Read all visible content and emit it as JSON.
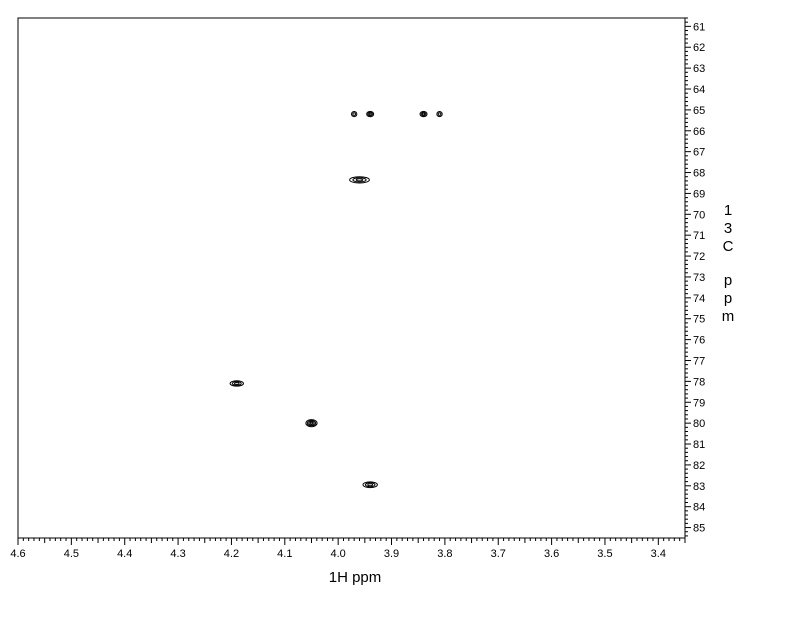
{
  "chart_data": {
    "type": "scatter",
    "subtype": "2D NMR contour plot",
    "title": "",
    "xlabel": "1H ppm",
    "ylabel": "13C ppm",
    "xlim": [
      4.6,
      3.35
    ],
    "ylim": [
      60.6,
      85.5
    ],
    "x_reversed": true,
    "y_reversed": true,
    "x_tick_labels": [
      "4.6",
      "4.5",
      "4.4",
      "4.3",
      "4.2",
      "4.1",
      "4.0",
      "3.9",
      "3.8",
      "3.7",
      "3.6",
      "3.5",
      "3.4"
    ],
    "x_tick_values": [
      4.6,
      4.5,
      4.4,
      4.3,
      4.2,
      4.1,
      4.0,
      3.9,
      3.8,
      3.7,
      3.6,
      3.5,
      3.4
    ],
    "y_tick_labels": [
      "61",
      "62",
      "63",
      "64",
      "65",
      "66",
      "67",
      "68",
      "69",
      "70",
      "71",
      "72",
      "73",
      "74",
      "75",
      "76",
      "77",
      "78",
      "79",
      "80",
      "81",
      "82",
      "83",
      "84",
      "85"
    ],
    "y_tick_values": [
      61,
      62,
      63,
      64,
      65,
      66,
      67,
      68,
      69,
      70,
      71,
      72,
      73,
      74,
      75,
      76,
      77,
      78,
      79,
      80,
      81,
      82,
      83,
      84,
      85
    ],
    "grid": false,
    "legend": "none",
    "colors": {
      "contour": "#000000",
      "background": "#ffffff",
      "axes": "#000000"
    },
    "peaks": [
      {
        "x": 3.97,
        "y": 65.2,
        "width_ppm": 0.01,
        "height_ppm": 0.24,
        "intensity": "weak"
      },
      {
        "x": 3.94,
        "y": 65.2,
        "width_ppm": 0.013,
        "height_ppm": 0.26,
        "intensity": "medium"
      },
      {
        "x": 3.84,
        "y": 65.2,
        "width_ppm": 0.013,
        "height_ppm": 0.26,
        "intensity": "medium"
      },
      {
        "x": 3.81,
        "y": 65.2,
        "width_ppm": 0.01,
        "height_ppm": 0.24,
        "intensity": "weak"
      },
      {
        "x": 3.96,
        "y": 68.35,
        "width_ppm": 0.037,
        "height_ppm": 0.3,
        "intensity": "medium"
      },
      {
        "x": 4.19,
        "y": 78.1,
        "width_ppm": 0.025,
        "height_ppm": 0.26,
        "intensity": "medium"
      },
      {
        "x": 4.05,
        "y": 80.0,
        "width_ppm": 0.021,
        "height_ppm": 0.34,
        "intensity": "strong"
      },
      {
        "x": 3.94,
        "y": 82.95,
        "width_ppm": 0.027,
        "height_ppm": 0.28,
        "intensity": "medium"
      }
    ]
  }
}
